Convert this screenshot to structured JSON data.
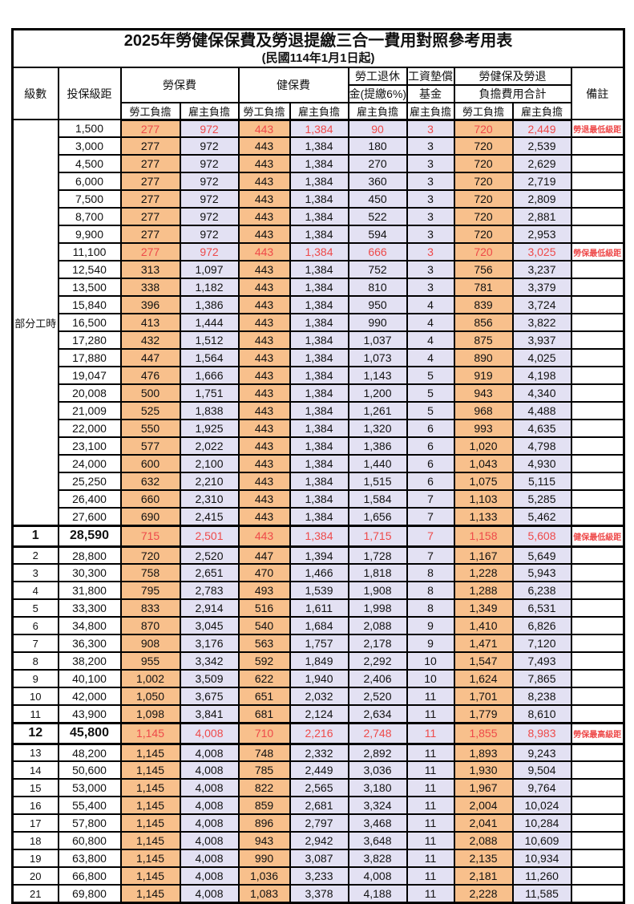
{
  "title": "2025年勞健保保費及勞退提繳三合一費用對照參考用表",
  "subtitle": "(民國114年1月1日起)",
  "colors": {
    "worker_burden_bg": "#F8C08C",
    "employer_burden_bg": "#E3E1F3",
    "highlight_red": "#EE4A4A",
    "grid": "#000000"
  },
  "header": {
    "level": "級數",
    "bracket": "投保級距",
    "labor_insurance": "勞保費",
    "health_insurance": "健保費",
    "pension_line1": "勞工退休",
    "pension_line2": "金(提繳6%)",
    "wage_fund_line1": "工資墊償",
    "wage_fund_line2": "基金",
    "total_line1": "勞健保及勞退",
    "total_line2": "負擔費用合計",
    "remark": "備註",
    "worker": "勞工負擔",
    "employer": "雇主負擔"
  },
  "part_time_label": "部分工時",
  "rows": [
    {
      "level": "部分工時",
      "span": 23,
      "bracket": "1,500",
      "values": [
        "277",
        "972",
        "443",
        "1,384",
        "90",
        "3",
        "720",
        "2,449"
      ],
      "remark": "勞退最低級距",
      "red": true
    },
    {
      "bracket": "3,000",
      "values": [
        "277",
        "972",
        "443",
        "1,384",
        "180",
        "3",
        "720",
        "2,539"
      ],
      "remark": ""
    },
    {
      "bracket": "4,500",
      "values": [
        "277",
        "972",
        "443",
        "1,384",
        "270",
        "3",
        "720",
        "2,629"
      ],
      "remark": ""
    },
    {
      "bracket": "6,000",
      "values": [
        "277",
        "972",
        "443",
        "1,384",
        "360",
        "3",
        "720",
        "2,719"
      ],
      "remark": ""
    },
    {
      "bracket": "7,500",
      "values": [
        "277",
        "972",
        "443",
        "1,384",
        "450",
        "3",
        "720",
        "2,809"
      ],
      "remark": ""
    },
    {
      "bracket": "8,700",
      "values": [
        "277",
        "972",
        "443",
        "1,384",
        "522",
        "3",
        "720",
        "2,881"
      ],
      "remark": ""
    },
    {
      "bracket": "9,900",
      "values": [
        "277",
        "972",
        "443",
        "1,384",
        "594",
        "3",
        "720",
        "2,953"
      ],
      "remark": ""
    },
    {
      "bracket": "11,100",
      "values": [
        "277",
        "972",
        "443",
        "1,384",
        "666",
        "3",
        "720",
        "3,025"
      ],
      "remark": "勞保最低級距",
      "red": true
    },
    {
      "bracket": "12,540",
      "values": [
        "313",
        "1,097",
        "443",
        "1,384",
        "752",
        "3",
        "756",
        "3,237"
      ],
      "remark": ""
    },
    {
      "bracket": "13,500",
      "values": [
        "338",
        "1,182",
        "443",
        "1,384",
        "810",
        "3",
        "781",
        "3,379"
      ],
      "remark": ""
    },
    {
      "bracket": "15,840",
      "values": [
        "396",
        "1,386",
        "443",
        "1,384",
        "950",
        "4",
        "839",
        "3,724"
      ],
      "remark": ""
    },
    {
      "bracket": "16,500",
      "values": [
        "413",
        "1,444",
        "443",
        "1,384",
        "990",
        "4",
        "856",
        "3,822"
      ],
      "remark": ""
    },
    {
      "bracket": "17,280",
      "values": [
        "432",
        "1,512",
        "443",
        "1,384",
        "1,037",
        "4",
        "875",
        "3,937"
      ],
      "remark": ""
    },
    {
      "bracket": "17,880",
      "values": [
        "447",
        "1,564",
        "443",
        "1,384",
        "1,073",
        "4",
        "890",
        "4,025"
      ],
      "remark": ""
    },
    {
      "bracket": "19,047",
      "values": [
        "476",
        "1,666",
        "443",
        "1,384",
        "1,143",
        "5",
        "919",
        "4,198"
      ],
      "remark": ""
    },
    {
      "bracket": "20,008",
      "values": [
        "500",
        "1,751",
        "443",
        "1,384",
        "1,200",
        "5",
        "943",
        "4,340"
      ],
      "remark": ""
    },
    {
      "bracket": "21,009",
      "values": [
        "525",
        "1,838",
        "443",
        "1,384",
        "1,261",
        "5",
        "968",
        "4,488"
      ],
      "remark": ""
    },
    {
      "bracket": "22,000",
      "values": [
        "550",
        "1,925",
        "443",
        "1,384",
        "1,320",
        "6",
        "993",
        "4,635"
      ],
      "remark": ""
    },
    {
      "bracket": "23,100",
      "values": [
        "577",
        "2,022",
        "443",
        "1,384",
        "1,386",
        "6",
        "1,020",
        "4,798"
      ],
      "remark": ""
    },
    {
      "bracket": "24,000",
      "values": [
        "600",
        "2,100",
        "443",
        "1,384",
        "1,440",
        "6",
        "1,043",
        "4,930"
      ],
      "remark": ""
    },
    {
      "bracket": "25,250",
      "values": [
        "632",
        "2,210",
        "443",
        "1,384",
        "1,515",
        "6",
        "1,075",
        "5,115"
      ],
      "remark": ""
    },
    {
      "bracket": "26,400",
      "values": [
        "660",
        "2,310",
        "443",
        "1,384",
        "1,584",
        "7",
        "1,103",
        "5,285"
      ],
      "remark": ""
    },
    {
      "bracket": "27,600",
      "values": [
        "690",
        "2,415",
        "443",
        "1,384",
        "1,656",
        "7",
        "1,133",
        "5,462"
      ],
      "remark": ""
    },
    {
      "level": "1",
      "span": 1,
      "bracket": "28,590",
      "values": [
        "715",
        "2,501",
        "443",
        "1,384",
        "1,715",
        "7",
        "1,158",
        "5,608"
      ],
      "remark": "健保最低級距",
      "red": true,
      "bold": true,
      "heavy": true
    },
    {
      "level": "2",
      "span": 1,
      "bracket": "28,800",
      "values": [
        "720",
        "2,520",
        "447",
        "1,394",
        "1,728",
        "7",
        "1,167",
        "5,649"
      ],
      "remark": ""
    },
    {
      "level": "3",
      "span": 1,
      "bracket": "30,300",
      "values": [
        "758",
        "2,651",
        "470",
        "1,466",
        "1,818",
        "8",
        "1,228",
        "5,943"
      ],
      "remark": ""
    },
    {
      "level": "4",
      "span": 1,
      "bracket": "31,800",
      "values": [
        "795",
        "2,783",
        "493",
        "1,539",
        "1,908",
        "8",
        "1,288",
        "6,238"
      ],
      "remark": ""
    },
    {
      "level": "5",
      "span": 1,
      "bracket": "33,300",
      "values": [
        "833",
        "2,914",
        "516",
        "1,611",
        "1,998",
        "8",
        "1,349",
        "6,531"
      ],
      "remark": ""
    },
    {
      "level": "6",
      "span": 1,
      "bracket": "34,800",
      "values": [
        "870",
        "3,045",
        "540",
        "1,684",
        "2,088",
        "9",
        "1,410",
        "6,826"
      ],
      "remark": ""
    },
    {
      "level": "7",
      "span": 1,
      "bracket": "36,300",
      "values": [
        "908",
        "3,176",
        "563",
        "1,757",
        "2,178",
        "9",
        "1,471",
        "7,120"
      ],
      "remark": ""
    },
    {
      "level": "8",
      "span": 1,
      "bracket": "38,200",
      "values": [
        "955",
        "3,342",
        "592",
        "1,849",
        "2,292",
        "10",
        "1,547",
        "7,493"
      ],
      "remark": ""
    },
    {
      "level": "9",
      "span": 1,
      "bracket": "40,100",
      "values": [
        "1,002",
        "3,509",
        "622",
        "1,940",
        "2,406",
        "10",
        "1,624",
        "7,865"
      ],
      "remark": ""
    },
    {
      "level": "10",
      "span": 1,
      "bracket": "42,000",
      "values": [
        "1,050",
        "3,675",
        "651",
        "2,032",
        "2,520",
        "11",
        "1,701",
        "8,238"
      ],
      "remark": ""
    },
    {
      "level": "11",
      "span": 1,
      "bracket": "43,900",
      "values": [
        "1,098",
        "3,841",
        "681",
        "2,124",
        "2,634",
        "11",
        "1,779",
        "8,610"
      ],
      "remark": ""
    },
    {
      "level": "12",
      "span": 1,
      "bracket": "45,800",
      "values": [
        "1,145",
        "4,008",
        "710",
        "2,216",
        "2,748",
        "11",
        "1,855",
        "8,983"
      ],
      "remark": "勞保最高級距",
      "red": true,
      "bold": true,
      "heavy": true
    },
    {
      "level": "13",
      "span": 1,
      "bracket": "48,200",
      "values": [
        "1,145",
        "4,008",
        "748",
        "2,332",
        "2,892",
        "11",
        "1,893",
        "9,243"
      ],
      "remark": ""
    },
    {
      "level": "14",
      "span": 1,
      "bracket": "50,600",
      "values": [
        "1,145",
        "4,008",
        "785",
        "2,449",
        "3,036",
        "11",
        "1,930",
        "9,504"
      ],
      "remark": ""
    },
    {
      "level": "15",
      "span": 1,
      "bracket": "53,000",
      "values": [
        "1,145",
        "4,008",
        "822",
        "2,565",
        "3,180",
        "11",
        "1,967",
        "9,764"
      ],
      "remark": ""
    },
    {
      "level": "16",
      "span": 1,
      "bracket": "55,400",
      "values": [
        "1,145",
        "4,008",
        "859",
        "2,681",
        "3,324",
        "11",
        "2,004",
        "10,024"
      ],
      "remark": ""
    },
    {
      "level": "17",
      "span": 1,
      "bracket": "57,800",
      "values": [
        "1,145",
        "4,008",
        "896",
        "2,797",
        "3,468",
        "11",
        "2,041",
        "10,284"
      ],
      "remark": ""
    },
    {
      "level": "18",
      "span": 1,
      "bracket": "60,800",
      "values": [
        "1,145",
        "4,008",
        "943",
        "2,942",
        "3,648",
        "11",
        "2,088",
        "10,609"
      ],
      "remark": ""
    },
    {
      "level": "19",
      "span": 1,
      "bracket": "63,800",
      "values": [
        "1,145",
        "4,008",
        "990",
        "3,087",
        "3,828",
        "11",
        "2,135",
        "10,934"
      ],
      "remark": ""
    },
    {
      "level": "20",
      "span": 1,
      "bracket": "66,800",
      "values": [
        "1,145",
        "4,008",
        "1,036",
        "3,233",
        "4,008",
        "11",
        "2,181",
        "11,260"
      ],
      "remark": ""
    },
    {
      "level": "21",
      "span": 1,
      "bracket": "69,800",
      "values": [
        "1,145",
        "4,008",
        "1,083",
        "3,378",
        "4,188",
        "11",
        "2,228",
        "11,585"
      ],
      "remark": ""
    }
  ]
}
